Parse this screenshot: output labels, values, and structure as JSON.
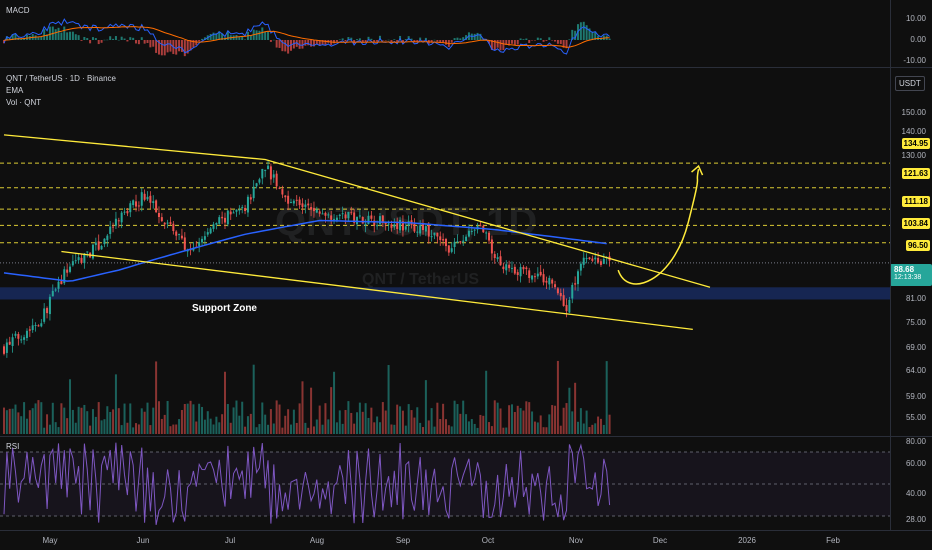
{
  "macd": {
    "title": "MACD",
    "ticks": [
      "10.00",
      "0.00",
      "-10.00"
    ]
  },
  "header": {
    "symbol_line": "QNT / TetherUS · 1D · Binance",
    "ema_label": "EMA",
    "vol_label": "Vol · QNT"
  },
  "currency": "USDT",
  "watermark": {
    "big": "QNTUSDT, 1D",
    "sub": "QNT / TetherUS"
  },
  "support_label": "Support Zone",
  "price_axis": [
    "150.00",
    "140.00",
    "130.00",
    "81.00",
    "75.00",
    "69.00",
    "64.00",
    "59.00",
    "55.00"
  ],
  "levels": [
    {
      "value": "134.95",
      "bg": "#ffeb3b",
      "fg": "#000000"
    },
    {
      "value": "121.63",
      "bg": "#ffeb3b",
      "fg": "#000000"
    },
    {
      "value": "111.18",
      "bg": "#ffeb3b",
      "fg": "#000000"
    },
    {
      "value": "103.84",
      "bg": "#ffeb3b",
      "fg": "#000000"
    },
    {
      "value": "96.50",
      "bg": "#ffeb3b",
      "fg": "#000000"
    }
  ],
  "current": {
    "price": "88.68",
    "countdown": "12:13:38",
    "bg": "#26a69a"
  },
  "rsi": {
    "title": "RSI",
    "ticks": [
      "80.00",
      "60.00",
      "40.00",
      "28.00"
    ]
  },
  "months": [
    "May",
    "Jun",
    "Jul",
    "Aug",
    "Sep",
    "Oct",
    "Nov",
    "Dec",
    "2026",
    "Feb"
  ],
  "colors": {
    "up": "#26a69a",
    "down": "#ef5350",
    "ema": "#2962ff",
    "trend": "#ffeb3b",
    "rsi": "#7e57c2",
    "macd_line": "#2962ff",
    "signal_line": "#ff6d00"
  },
  "chart_data": {
    "type": "candlestick",
    "title": "QNT / TetherUS · 1D · Binance",
    "x_range": [
      "2025-04-22",
      "2025-11-19"
    ],
    "y_range": [
      52,
      160
    ],
    "scale": "log",
    "close_path": [
      [
        "2025-04-22",
        62
      ],
      [
        "2025-05-05",
        70
      ],
      [
        "2025-05-15",
        88
      ],
      [
        "2025-05-25",
        95
      ],
      [
        "2025-06-02",
        108
      ],
      [
        "2025-06-10",
        118
      ],
      [
        "2025-06-18",
        105
      ],
      [
        "2025-06-26",
        92
      ],
      [
        "2025-07-05",
        105
      ],
      [
        "2025-07-15",
        112
      ],
      [
        "2025-07-22",
        134
      ],
      [
        "2025-07-28",
        118
      ],
      [
        "2025-08-08",
        110
      ],
      [
        "2025-08-20",
        108
      ],
      [
        "2025-09-01",
        106
      ],
      [
        "2025-09-15",
        102
      ],
      [
        "2025-09-25",
        94
      ],
      [
        "2025-10-05",
        104
      ],
      [
        "2025-10-10",
        90
      ],
      [
        "2025-10-20",
        85
      ],
      [
        "2025-10-30",
        82
      ],
      [
        "2025-11-04",
        73
      ],
      [
        "2025-11-10",
        92
      ],
      [
        "2025-11-19",
        88.68
      ]
    ],
    "ema_path": [
      [
        "2025-04-22",
        85
      ],
      [
        "2025-05-15",
        82
      ],
      [
        "2025-06-01",
        86
      ],
      [
        "2025-06-20",
        92
      ],
      [
        "2025-07-15",
        100
      ],
      [
        "2025-08-10",
        106
      ],
      [
        "2025-09-10",
        105
      ],
      [
        "2025-10-10",
        102
      ],
      [
        "2025-11-19",
        96
      ]
    ],
    "upper_trendline": [
      [
        "2025-04-22",
        152
      ],
      [
        "2025-07-22",
        137
      ],
      [
        "2025-12-24",
        80
      ]
    ],
    "lower_trendline": [
      [
        "2025-05-12",
        93
      ],
      [
        "2025-12-18",
        67
      ]
    ],
    "support_zone": [
      76,
      80
    ],
    "projection_target": 134.95,
    "horizontal_levels": [
      134.95,
      121.63,
      111.18,
      103.84,
      96.5
    ],
    "current_price": 88.68
  }
}
